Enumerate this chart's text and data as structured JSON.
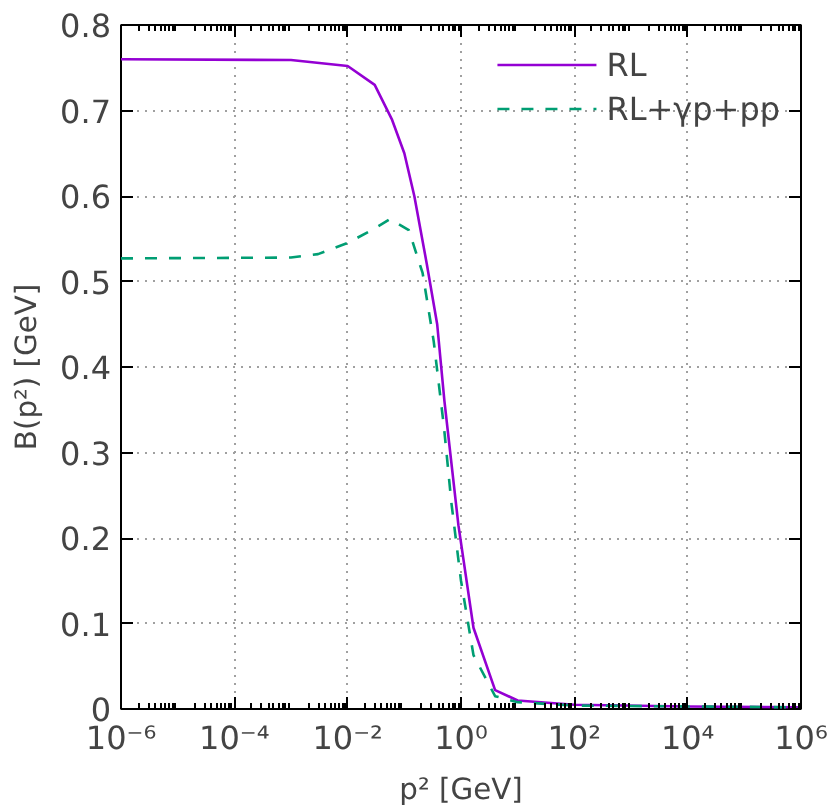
{
  "chart_data": {
    "type": "line",
    "xlabel": "p² [GeV]",
    "ylabel": "B(p²) [GeV]",
    "log": "x",
    "xlim": [
      1e-06,
      1000000.0
    ],
    "ylim": [
      0,
      0.8
    ],
    "xticks": [
      {
        "value": 1e-06,
        "label": "10⁻⁶"
      },
      {
        "value": 0.0001,
        "label": "10⁻⁴"
      },
      {
        "value": 0.01,
        "label": "10⁻²"
      },
      {
        "value": 1,
        "label": "10⁰"
      },
      {
        "value": 100,
        "label": "10²"
      },
      {
        "value": 10000,
        "label": "10⁴"
      },
      {
        "value": 1000000,
        "label": "10⁶"
      }
    ],
    "yticks": [
      0,
      0.1,
      0.2,
      0.3,
      0.4,
      0.5,
      0.6,
      0.7,
      0.8
    ],
    "grid": true,
    "legend": "top right",
    "series": [
      {
        "name": "RL",
        "color": "#9400d3",
        "line_style": "solid",
        "x": [
          1e-06,
          0.001,
          0.01,
          0.03,
          0.06,
          0.1,
          0.15,
          0.25,
          0.38,
          0.51,
          0.9,
          1.66,
          4,
          10,
          100,
          10000,
          1000000
        ],
        "values": [
          0.76,
          0.759,
          0.752,
          0.73,
          0.69,
          0.65,
          0.6,
          0.52,
          0.45,
          0.36,
          0.215,
          0.095,
          0.022,
          0.01,
          0.005,
          0.003,
          0.002
        ]
      },
      {
        "name": "RL+γp+pp",
        "color": "#009e73",
        "line_style": "dashed",
        "x": [
          1e-06,
          0.001,
          0.003,
          0.01,
          0.03,
          0.056,
          0.12,
          0.21,
          0.33,
          0.5,
          0.68,
          1,
          1.66,
          4,
          10,
          100,
          1000000
        ],
        "values": [
          0.527,
          0.528,
          0.532,
          0.545,
          0.562,
          0.573,
          0.56,
          0.51,
          0.43,
          0.33,
          0.24,
          0.15,
          0.063,
          0.015,
          0.008,
          0.004,
          0.002
        ]
      }
    ]
  }
}
